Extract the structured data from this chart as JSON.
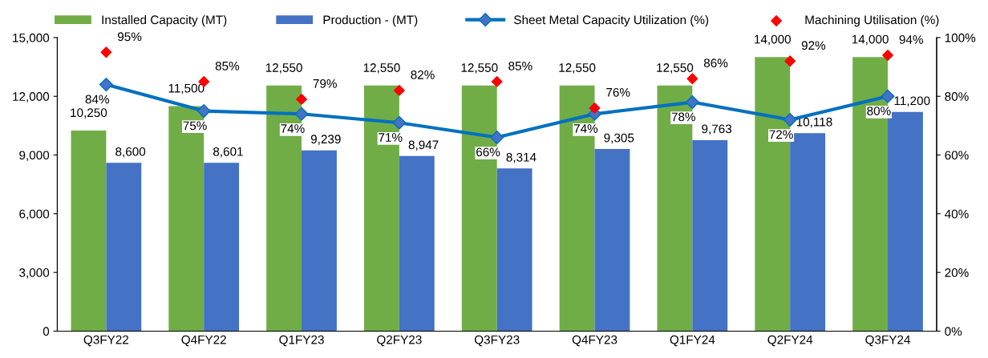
{
  "chart_data": {
    "type": "bar",
    "categories": [
      "Q3FY22",
      "Q4FY22",
      "Q1FY23",
      "Q2FY23",
      "Q3FY23",
      "Q4FY23",
      "Q1FY24",
      "Q2FY24",
      "Q3FY24"
    ],
    "series": [
      {
        "name": "Installed Capacity (MT)",
        "color": "#70ad47",
        "values": [
          10250,
          11500,
          12550,
          12550,
          12550,
          12550,
          12550,
          14000,
          14000
        ],
        "value_labels": [
          "10,250",
          "11,500",
          "12,550",
          "12,550",
          "12,550",
          "12,550",
          "12,550",
          "14,000",
          "14,000"
        ]
      },
      {
        "name": "Production - (MT)",
        "color": "#4472c4",
        "values": [
          8600,
          8601,
          9239,
          8947,
          8314,
          9305,
          9763,
          10118,
          11200
        ],
        "value_labels": [
          "8,600",
          "8,601",
          "9,239",
          "8,947",
          "8,314",
          "9,305",
          "9,763",
          "10,118",
          "11,200"
        ]
      },
      {
        "name": "Sheet Metal Capacity Utilization (%)",
        "color": "#0070c0",
        "type": "line",
        "axis": "y2",
        "marker": "diamond",
        "values": [
          84,
          75,
          74,
          71,
          66,
          74,
          78,
          72,
          80
        ],
        "value_labels": [
          "84%",
          "75%",
          "74%",
          "71%",
          "66%",
          "74%",
          "78%",
          "72%",
          "80%"
        ]
      },
      {
        "name": "Machining Utilisation (%)",
        "color": "#ff0000",
        "type": "scatter",
        "axis": "y2",
        "marker": "diamond",
        "values": [
          95,
          85,
          79,
          82,
          85,
          76,
          86,
          92,
          94
        ],
        "value_labels": [
          "95%",
          "85%",
          "79%",
          "82%",
          "85%",
          "76%",
          "86%",
          "92%",
          "94%"
        ]
      }
    ],
    "ylim": [
      0,
      15000
    ],
    "yticks": [
      {
        "value": 0,
        "label": "0"
      },
      {
        "value": 3000,
        "label": "3,000"
      },
      {
        "value": 6000,
        "label": "6,000"
      },
      {
        "value": 9000,
        "label": "9,000"
      },
      {
        "value": 12000,
        "label": "12,000"
      },
      {
        "value": 15000,
        "label": "15,000"
      }
    ],
    "y2lim": [
      0,
      100
    ],
    "y2ticks": [
      {
        "value": 0,
        "label": "0%"
      },
      {
        "value": 20,
        "label": "20%"
      },
      {
        "value": 40,
        "label": "40%"
      },
      {
        "value": 60,
        "label": "60%"
      },
      {
        "value": 80,
        "label": "80%"
      },
      {
        "value": 100,
        "label": "100%"
      }
    ],
    "legend": "top",
    "grid": false
  }
}
